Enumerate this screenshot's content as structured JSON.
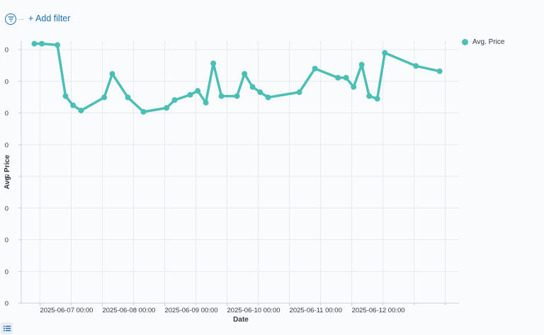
{
  "filter_bar": {
    "add_filter_label": "+ Add filter",
    "filter_icon": "filter-icon"
  },
  "colors": {
    "series": "#4bbfb3",
    "link": "#1a6fb0",
    "grid": "#e6e9ee",
    "axis": "#c9cfd8",
    "text": "#343741"
  },
  "legend_toggle_icon": "list-icon",
  "chart_data": {
    "type": "line",
    "xlabel": "Date",
    "ylabel": "Avg. Price",
    "ytick_labels": [
      "0",
      "0",
      "0",
      "0",
      "0",
      "0",
      "0",
      "0",
      "0"
    ],
    "xticks": [
      {
        "label": "2025-06-07 00:00",
        "day": 0
      },
      {
        "label": "2025-06-08 00:00",
        "day": 1
      },
      {
        "label": "2025-06-09 00:00",
        "day": 2
      },
      {
        "label": "2025-06-10 00:00",
        "day": 3
      },
      {
        "label": "2025-06-11 00:00",
        "day": 4
      },
      {
        "label": "2025-06-12 00:00",
        "day": 5
      }
    ],
    "x_range": [
      -0.3,
      6.72
    ],
    "y_range": [
      0,
      1.0
    ],
    "grid": true,
    "legend_position": "top-right",
    "series": [
      {
        "name": "Avg. Price",
        "points": [
          [
            -0.09,
            0.99
          ],
          [
            0.03,
            0.99
          ],
          [
            0.28,
            0.985
          ],
          [
            0.41,
            0.79
          ],
          [
            0.53,
            0.755
          ],
          [
            0.66,
            0.735
          ],
          [
            1.03,
            0.785
          ],
          [
            1.16,
            0.875
          ],
          [
            1.41,
            0.785
          ],
          [
            1.66,
            0.73
          ],
          [
            2.03,
            0.745
          ],
          [
            2.16,
            0.775
          ],
          [
            2.41,
            0.795
          ],
          [
            2.53,
            0.81
          ],
          [
            2.66,
            0.765
          ],
          [
            2.78,
            0.915
          ],
          [
            2.91,
            0.79
          ],
          [
            3.16,
            0.79
          ],
          [
            3.28,
            0.875
          ],
          [
            3.41,
            0.825
          ],
          [
            3.53,
            0.805
          ],
          [
            3.66,
            0.785
          ],
          [
            4.16,
            0.805
          ],
          [
            4.41,
            0.895
          ],
          [
            4.78,
            0.86
          ],
          [
            4.91,
            0.86
          ],
          [
            5.03,
            0.825
          ],
          [
            5.16,
            0.91
          ],
          [
            5.28,
            0.79
          ],
          [
            5.41,
            0.78
          ],
          [
            5.53,
            0.955
          ],
          [
            6.03,
            0.905
          ],
          [
            6.41,
            0.885
          ]
        ]
      }
    ]
  }
}
